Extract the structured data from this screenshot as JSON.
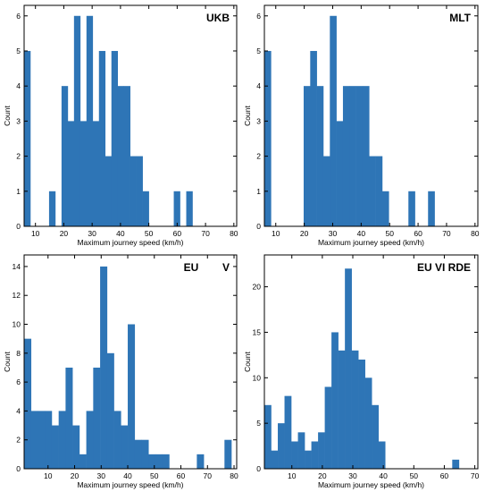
{
  "chart_data": [
    {
      "type": "bar",
      "panel_label": "UKB",
      "xlabel": "Maximum journey speed (km/h)",
      "ylabel": "Count",
      "xlim": [
        6,
        81
      ],
      "ylim": [
        0,
        6.3
      ],
      "xticks": [
        10,
        20,
        30,
        40,
        50,
        60,
        70,
        80
      ],
      "yticks": [
        0,
        1,
        2,
        3,
        4,
        5,
        6
      ],
      "bin_edges": [
        6,
        8.2,
        10.4,
        12.6,
        14.8,
        17,
        19.2,
        21.4,
        23.6,
        25.8,
        28,
        30.2,
        32.4,
        34.6,
        36.8,
        39,
        41.2,
        43.4,
        45.6,
        47.8,
        50,
        52.2,
        54.4,
        56.6,
        58.8,
        61,
        63.2,
        65.4,
        67.6
      ],
      "counts": [
        5,
        0,
        0,
        0,
        1,
        0,
        4,
        3,
        6,
        3,
        6,
        3,
        5,
        2,
        5,
        4,
        4,
        2,
        2,
        1,
        0,
        0,
        0,
        0,
        1,
        0,
        1,
        0
      ],
      "color": "#2e75b6"
    },
    {
      "type": "bar",
      "panel_label": "MLT",
      "xlabel": "Maximum journey speed (km/h)",
      "ylabel": "Count",
      "xlim": [
        6,
        81
      ],
      "ylim": [
        0,
        6.3
      ],
      "xticks": [
        10,
        20,
        30,
        40,
        50,
        60,
        70,
        80
      ],
      "yticks": [
        0,
        1,
        2,
        3,
        4,
        5,
        6
      ],
      "bin_edges": [
        6,
        8.3,
        10.6,
        12.9,
        15.2,
        17.5,
        19.8,
        22.1,
        24.4,
        26.7,
        29,
        31.3,
        33.6,
        35.9,
        38.2,
        40.5,
        42.8,
        45.1,
        47.4,
        49.7,
        52,
        54.3,
        56.6,
        58.9,
        61.2,
        63.5,
        65.8,
        68.1
      ],
      "counts": [
        5,
        0,
        0,
        0,
        0,
        0,
        4,
        5,
        4,
        2,
        6,
        3,
        4,
        4,
        4,
        4,
        2,
        2,
        1,
        0,
        0,
        0,
        1,
        0,
        0,
        1,
        0
      ],
      "color": "#2e75b6"
    },
    {
      "type": "bar",
      "panel_label": "EU        V",
      "xlabel": "Maximum journey speed (km/h)",
      "ylabel": "Count",
      "xlim": [
        1,
        81
      ],
      "ylim": [
        0,
        14.8
      ],
      "xticks": [
        10,
        20,
        30,
        40,
        50,
        60,
        70,
        80
      ],
      "yticks": [
        0,
        2,
        4,
        6,
        8,
        10,
        12,
        14
      ],
      "bin_edges": [
        1,
        3.6,
        6.2,
        8.8,
        11.4,
        14,
        16.6,
        19.2,
        21.8,
        24.4,
        27,
        29.6,
        32.2,
        34.8,
        37.4,
        40,
        42.6,
        45.2,
        47.8,
        50.4,
        53,
        55.6,
        58.2,
        60.8,
        63.4,
        66,
        68.6,
        71.2,
        73.8,
        76.4,
        79
      ],
      "counts": [
        9,
        4,
        4,
        4,
        3,
        4,
        7,
        3,
        1,
        4,
        7,
        14,
        8,
        4,
        3,
        10,
        2,
        2,
        1,
        1,
        1,
        0,
        0,
        0,
        0,
        1,
        0,
        0,
        0,
        2
      ],
      "color": "#2e75b6"
    },
    {
      "type": "bar",
      "panel_label": "EU VI RDE",
      "xlabel": "Maximum journey speed (km/h)",
      "ylabel": "Count",
      "xlim": [
        1,
        71
      ],
      "ylim": [
        0,
        23.5
      ],
      "xticks": [
        10,
        20,
        30,
        40,
        50,
        60,
        70
      ],
      "yticks": [
        0,
        5,
        10,
        15,
        20
      ],
      "bin_edges": [
        1,
        3.2,
        5.4,
        7.6,
        9.8,
        12,
        14.2,
        16.4,
        18.6,
        20.8,
        23,
        25.2,
        27.4,
        29.6,
        31.8,
        34,
        36.2,
        38.4,
        40.6,
        42.8,
        45,
        47.2,
        49.4,
        51.6,
        53.8,
        56,
        58.2,
        60.4,
        62.6,
        64.8
      ],
      "counts": [
        7,
        2,
        5,
        8,
        3,
        4,
        2,
        3,
        4,
        9,
        15,
        13,
        22,
        13,
        12,
        10,
        7,
        3,
        0,
        0,
        0,
        0,
        0,
        0,
        0,
        0,
        0,
        0,
        1
      ],
      "color": "#2e75b6"
    }
  ]
}
